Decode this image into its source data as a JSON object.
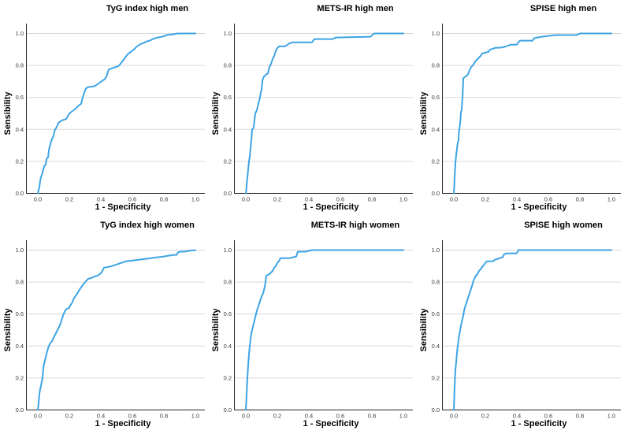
{
  "page": {
    "background": "#ffffff",
    "description_visible_text_only": true
  },
  "style_colors": {
    "curve": "#3ea4e4",
    "gridline": "#d9d9d9",
    "axis": "#262626",
    "tick_text": "#3c3c3c",
    "label_text": "#000000"
  },
  "chart_data": [
    {
      "type": "line",
      "chart_kind": "roc-curve",
      "title": "TyG index high men",
      "xlabel": "1 - Specificity",
      "ylabel": "Sensibility",
      "xticks": [
        "0.0",
        "0.2",
        "0.4",
        "0.6",
        "0.8",
        "1.0"
      ],
      "yticks": [
        "0.0",
        "0.2",
        "0.4",
        "0.6",
        "0.8",
        "1.0"
      ],
      "xlim": [
        0,
        1
      ],
      "ylim": [
        0,
        1
      ],
      "grid": "horizontal",
      "legend": "none",
      "points": [
        [
          0,
          0
        ],
        [
          0.005,
          0.02
        ],
        [
          0.01,
          0.04
        ],
        [
          0.015,
          0.08
        ],
        [
          0.02,
          0.1
        ],
        [
          0.03,
          0.13
        ],
        [
          0.04,
          0.17
        ],
        [
          0.05,
          0.18
        ],
        [
          0.055,
          0.215
        ],
        [
          0.065,
          0.225
        ],
        [
          0.07,
          0.27
        ],
        [
          0.08,
          0.31
        ],
        [
          0.09,
          0.34
        ],
        [
          0.1,
          0.36
        ],
        [
          0.105,
          0.385
        ],
        [
          0.11,
          0.4
        ],
        [
          0.12,
          0.415
        ],
        [
          0.13,
          0.44
        ],
        [
          0.15,
          0.455
        ],
        [
          0.18,
          0.465
        ],
        [
          0.2,
          0.5
        ],
        [
          0.22,
          0.515
        ],
        [
          0.24,
          0.53
        ],
        [
          0.26,
          0.55
        ],
        [
          0.275,
          0.56
        ],
        [
          0.285,
          0.6
        ],
        [
          0.295,
          0.63
        ],
        [
          0.305,
          0.655
        ],
        [
          0.32,
          0.665
        ],
        [
          0.36,
          0.67
        ],
        [
          0.39,
          0.69
        ],
        [
          0.41,
          0.705
        ],
        [
          0.425,
          0.715
        ],
        [
          0.435,
          0.73
        ],
        [
          0.45,
          0.775
        ],
        [
          0.48,
          0.785
        ],
        [
          0.51,
          0.795
        ],
        [
          0.525,
          0.81
        ],
        [
          0.54,
          0.83
        ],
        [
          0.555,
          0.85
        ],
        [
          0.57,
          0.87
        ],
        [
          0.59,
          0.885
        ],
        [
          0.61,
          0.9
        ],
        [
          0.63,
          0.92
        ],
        [
          0.655,
          0.935
        ],
        [
          0.67,
          0.94
        ],
        [
          0.69,
          0.95
        ],
        [
          0.71,
          0.955
        ],
        [
          0.73,
          0.965
        ],
        [
          0.76,
          0.975
        ],
        [
          0.79,
          0.98
        ],
        [
          0.82,
          0.99
        ],
        [
          0.86,
          0.995
        ],
        [
          0.885,
          1.0
        ],
        [
          1,
          1
        ]
      ]
    },
    {
      "type": "line",
      "chart_kind": "roc-curve",
      "title": "METS-IR high men",
      "xlabel": "1 - Specificity",
      "ylabel": "Sensibility",
      "xticks": [
        "0.0",
        "0.2",
        "0.4",
        "0.6",
        "0.8",
        "1.0"
      ],
      "yticks": [
        "0.0",
        "0.2",
        "0.4",
        "0.6",
        "0.8",
        "1.0"
      ],
      "xlim": [
        0,
        1
      ],
      "ylim": [
        0,
        1
      ],
      "grid": "horizontal",
      "legend": "none",
      "points": [
        [
          0,
          0
        ],
        [
          0.003,
          0.02
        ],
        [
          0.005,
          0.05
        ],
        [
          0.01,
          0.1
        ],
        [
          0.015,
          0.15
        ],
        [
          0.02,
          0.2
        ],
        [
          0.025,
          0.23
        ],
        [
          0.03,
          0.28
        ],
        [
          0.035,
          0.33
        ],
        [
          0.04,
          0.4
        ],
        [
          0.05,
          0.41
        ],
        [
          0.055,
          0.46
        ],
        [
          0.06,
          0.5
        ],
        [
          0.07,
          0.52
        ],
        [
          0.08,
          0.56
        ],
        [
          0.09,
          0.6
        ],
        [
          0.095,
          0.63
        ],
        [
          0.1,
          0.65
        ],
        [
          0.105,
          0.7
        ],
        [
          0.11,
          0.72
        ],
        [
          0.115,
          0.73
        ],
        [
          0.13,
          0.745
        ],
        [
          0.14,
          0.75
        ],
        [
          0.15,
          0.79
        ],
        [
          0.16,
          0.81
        ],
        [
          0.17,
          0.84
        ],
        [
          0.18,
          0.86
        ],
        [
          0.19,
          0.89
        ],
        [
          0.2,
          0.91
        ],
        [
          0.215,
          0.92
        ],
        [
          0.25,
          0.92
        ],
        [
          0.265,
          0.93
        ],
        [
          0.28,
          0.94
        ],
        [
          0.3,
          0.945
        ],
        [
          0.42,
          0.945
        ],
        [
          0.435,
          0.965
        ],
        [
          0.55,
          0.965
        ],
        [
          0.57,
          0.975
        ],
        [
          0.79,
          0.98
        ],
        [
          0.815,
          1.0
        ],
        [
          1,
          1
        ]
      ]
    },
    {
      "type": "line",
      "chart_kind": "roc-curve",
      "title": "SPISE high men",
      "xlabel": "1 - Specificity",
      "ylabel": "Sensibility",
      "xticks": [
        "0.0",
        "0.2",
        "0.4",
        "0.6",
        "0.8",
        "1.0"
      ],
      "yticks": [
        "0.0",
        "0.2",
        "0.4",
        "0.6",
        "0.8",
        "1.0"
      ],
      "xlim": [
        0,
        1
      ],
      "ylim": [
        0,
        1
      ],
      "grid": "horizontal",
      "legend": "none",
      "points": [
        [
          0,
          0
        ],
        [
          0.003,
          0.05
        ],
        [
          0.005,
          0.1
        ],
        [
          0.008,
          0.15
        ],
        [
          0.01,
          0.19
        ],
        [
          0.015,
          0.24
        ],
        [
          0.02,
          0.28
        ],
        [
          0.025,
          0.32
        ],
        [
          0.03,
          0.33
        ],
        [
          0.032,
          0.38
        ],
        [
          0.035,
          0.4
        ],
        [
          0.04,
          0.44
        ],
        [
          0.042,
          0.46
        ],
        [
          0.045,
          0.51
        ],
        [
          0.05,
          0.52
        ],
        [
          0.055,
          0.6
        ],
        [
          0.058,
          0.66
        ],
        [
          0.06,
          0.72
        ],
        [
          0.08,
          0.735
        ],
        [
          0.09,
          0.745
        ],
        [
          0.1,
          0.77
        ],
        [
          0.11,
          0.79
        ],
        [
          0.12,
          0.8
        ],
        [
          0.13,
          0.815
        ],
        [
          0.14,
          0.83
        ],
        [
          0.16,
          0.85
        ],
        [
          0.17,
          0.86
        ],
        [
          0.18,
          0.875
        ],
        [
          0.2,
          0.88
        ],
        [
          0.22,
          0.885
        ],
        [
          0.23,
          0.9
        ],
        [
          0.25,
          0.905
        ],
        [
          0.26,
          0.91
        ],
        [
          0.3,
          0.912
        ],
        [
          0.32,
          0.915
        ],
        [
          0.33,
          0.92
        ],
        [
          0.35,
          0.925
        ],
        [
          0.36,
          0.93
        ],
        [
          0.4,
          0.93
        ],
        [
          0.41,
          0.945
        ],
        [
          0.42,
          0.955
        ],
        [
          0.5,
          0.955
        ],
        [
          0.51,
          0.97
        ],
        [
          0.53,
          0.975
        ],
        [
          0.56,
          0.98
        ],
        [
          0.6,
          0.985
        ],
        [
          0.65,
          0.99
        ],
        [
          0.78,
          0.99
        ],
        [
          0.8,
          1.0
        ],
        [
          1,
          1
        ]
      ]
    },
    {
      "type": "line",
      "chart_kind": "roc-curve",
      "title": "TyG index high women",
      "xlabel": "1 - Specificity",
      "ylabel": "Sensibility",
      "xticks": [
        "0.0",
        "0.2",
        "0.4",
        "0.6",
        "0.8",
        "1.0"
      ],
      "yticks": [
        "0.0",
        "0.2",
        "0.4",
        "0.6",
        "0.8",
        "1.0"
      ],
      "xlim": [
        0,
        1
      ],
      "ylim": [
        0,
        1
      ],
      "grid": "horizontal",
      "legend": "none",
      "points": [
        [
          0,
          0
        ],
        [
          0.005,
          0.04
        ],
        [
          0.01,
          0.1
        ],
        [
          0.015,
          0.13
        ],
        [
          0.02,
          0.15
        ],
        [
          0.025,
          0.18
        ],
        [
          0.03,
          0.2
        ],
        [
          0.035,
          0.26
        ],
        [
          0.04,
          0.29
        ],
        [
          0.045,
          0.31
        ],
        [
          0.05,
          0.33
        ],
        [
          0.06,
          0.37
        ],
        [
          0.07,
          0.4
        ],
        [
          0.08,
          0.42
        ],
        [
          0.09,
          0.43
        ],
        [
          0.1,
          0.45
        ],
        [
          0.11,
          0.47
        ],
        [
          0.12,
          0.49
        ],
        [
          0.13,
          0.51
        ],
        [
          0.14,
          0.53
        ],
        [
          0.15,
          0.56
        ],
        [
          0.16,
          0.59
        ],
        [
          0.17,
          0.615
        ],
        [
          0.18,
          0.63
        ],
        [
          0.2,
          0.64
        ],
        [
          0.21,
          0.66
        ],
        [
          0.22,
          0.675
        ],
        [
          0.23,
          0.7
        ],
        [
          0.245,
          0.72
        ],
        [
          0.26,
          0.745
        ],
        [
          0.27,
          0.76
        ],
        [
          0.28,
          0.775
        ],
        [
          0.3,
          0.8
        ],
        [
          0.32,
          0.82
        ],
        [
          0.34,
          0.825
        ],
        [
          0.36,
          0.835
        ],
        [
          0.38,
          0.84
        ],
        [
          0.4,
          0.855
        ],
        [
          0.41,
          0.87
        ],
        [
          0.42,
          0.89
        ],
        [
          0.45,
          0.895
        ],
        [
          0.47,
          0.9
        ],
        [
          0.5,
          0.91
        ],
        [
          0.53,
          0.92
        ],
        [
          0.56,
          0.93
        ],
        [
          0.6,
          0.935
        ],
        [
          0.64,
          0.94
        ],
        [
          0.68,
          0.945
        ],
        [
          0.72,
          0.95
        ],
        [
          0.76,
          0.955
        ],
        [
          0.8,
          0.96
        ],
        [
          0.83,
          0.965
        ],
        [
          0.86,
          0.97
        ],
        [
          0.88,
          0.97
        ],
        [
          0.89,
          0.985
        ],
        [
          0.9,
          0.99
        ],
        [
          0.93,
          0.99
        ],
        [
          0.96,
          0.995
        ],
        [
          1,
          1
        ]
      ]
    },
    {
      "type": "line",
      "chart_kind": "roc-curve",
      "title": "METS-IR high women",
      "xlabel": "1 - Specificity",
      "ylabel": "Sensibility",
      "xticks": [
        "0.0",
        "0.2",
        "0.4",
        "0.6",
        "0.8",
        "1.0"
      ],
      "yticks": [
        "0.0",
        "0.2",
        "0.4",
        "0.6",
        "0.8",
        "1.0"
      ],
      "xlim": [
        0,
        1
      ],
      "ylim": [
        0,
        1
      ],
      "grid": "horizontal",
      "legend": "none",
      "points": [
        [
          0,
          0
        ],
        [
          0.003,
          0.05
        ],
        [
          0.005,
          0.1
        ],
        [
          0.01,
          0.2
        ],
        [
          0.015,
          0.28
        ],
        [
          0.02,
          0.35
        ],
        [
          0.025,
          0.4
        ],
        [
          0.03,
          0.44
        ],
        [
          0.035,
          0.48
        ],
        [
          0.04,
          0.5
        ],
        [
          0.05,
          0.54
        ],
        [
          0.06,
          0.58
        ],
        [
          0.07,
          0.62
        ],
        [
          0.08,
          0.65
        ],
        [
          0.09,
          0.68
        ],
        [
          0.1,
          0.71
        ],
        [
          0.11,
          0.73
        ],
        [
          0.12,
          0.77
        ],
        [
          0.125,
          0.8
        ],
        [
          0.13,
          0.84
        ],
        [
          0.15,
          0.85
        ],
        [
          0.16,
          0.86
        ],
        [
          0.17,
          0.87
        ],
        [
          0.18,
          0.89
        ],
        [
          0.19,
          0.9
        ],
        [
          0.2,
          0.92
        ],
        [
          0.21,
          0.93
        ],
        [
          0.22,
          0.95
        ],
        [
          0.28,
          0.95
        ],
        [
          0.3,
          0.955
        ],
        [
          0.32,
          0.96
        ],
        [
          0.33,
          0.99
        ],
        [
          0.38,
          0.99
        ],
        [
          0.4,
          0.995
        ],
        [
          0.42,
          1.0
        ],
        [
          1,
          1
        ]
      ]
    },
    {
      "type": "line",
      "chart_kind": "roc-curve",
      "title": "SPISE high women",
      "xlabel": "1 - Specificity",
      "ylabel": "Sensibility",
      "xticks": [
        "0.0",
        "0.2",
        "0.4",
        "0.6",
        "0.8",
        "1.0"
      ],
      "yticks": [
        "0.0",
        "0.2",
        "0.4",
        "0.6",
        "0.8",
        "1.0"
      ],
      "xlim": [
        0,
        1
      ],
      "ylim": [
        0,
        1
      ],
      "grid": "horizontal",
      "legend": "none",
      "points": [
        [
          0,
          0
        ],
        [
          0.003,
          0.08
        ],
        [
          0.005,
          0.15
        ],
        [
          0.01,
          0.25
        ],
        [
          0.015,
          0.3
        ],
        [
          0.02,
          0.36
        ],
        [
          0.025,
          0.4
        ],
        [
          0.03,
          0.44
        ],
        [
          0.035,
          0.47
        ],
        [
          0.04,
          0.5
        ],
        [
          0.05,
          0.55
        ],
        [
          0.06,
          0.59
        ],
        [
          0.065,
          0.62
        ],
        [
          0.07,
          0.64
        ],
        [
          0.08,
          0.67
        ],
        [
          0.09,
          0.7
        ],
        [
          0.1,
          0.73
        ],
        [
          0.11,
          0.76
        ],
        [
          0.12,
          0.79
        ],
        [
          0.125,
          0.81
        ],
        [
          0.13,
          0.82
        ],
        [
          0.14,
          0.84
        ],
        [
          0.15,
          0.85
        ],
        [
          0.16,
          0.87
        ],
        [
          0.17,
          0.88
        ],
        [
          0.18,
          0.895
        ],
        [
          0.19,
          0.905
        ],
        [
          0.2,
          0.92
        ],
        [
          0.21,
          0.93
        ],
        [
          0.25,
          0.93
        ],
        [
          0.26,
          0.94
        ],
        [
          0.28,
          0.945
        ],
        [
          0.29,
          0.95
        ],
        [
          0.31,
          0.955
        ],
        [
          0.32,
          0.975
        ],
        [
          0.34,
          0.98
        ],
        [
          0.4,
          0.98
        ],
        [
          0.41,
          1.0
        ],
        [
          1,
          1
        ]
      ]
    }
  ]
}
